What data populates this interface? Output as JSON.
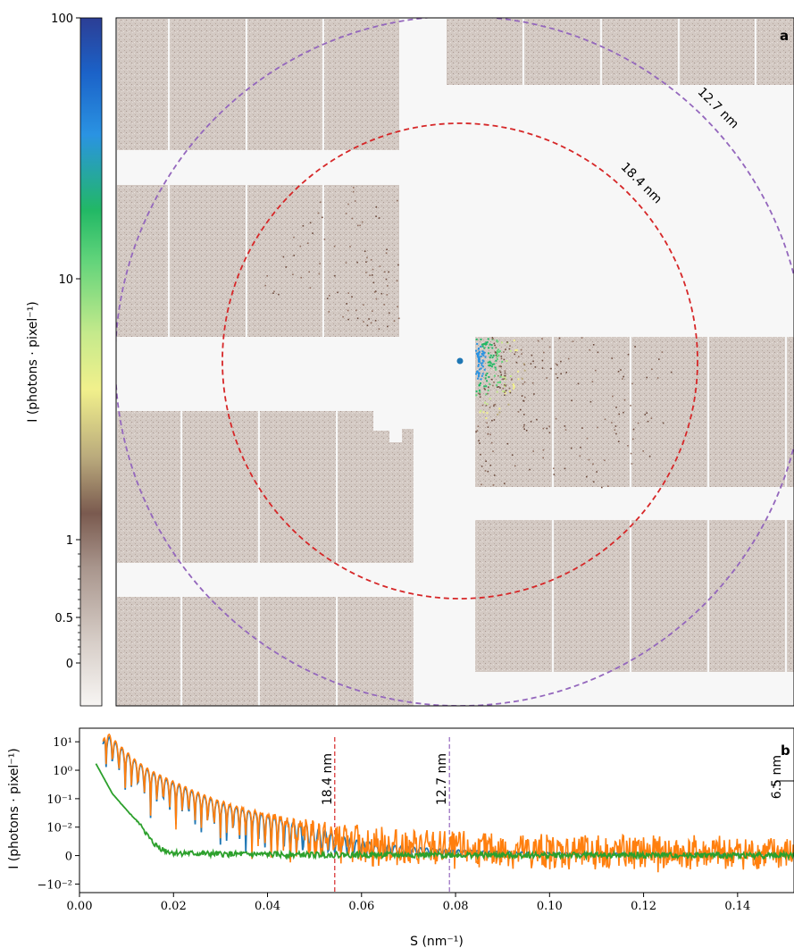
{
  "chart_data": [
    {
      "panel_label": "a",
      "type": "heatmap",
      "colorbar": {
        "label": "I (photons · pixel⁻¹)",
        "tick_labels": [
          "100",
          "10",
          "1",
          "0.5",
          "0"
        ],
        "scale": "symlog",
        "colors": [
          "#f7f5f3",
          "#d8cfc9",
          "#a9968d",
          "#7a5a4f",
          "#b9a97c",
          "#f1f08c",
          "#c6ea8c",
          "#5fd37a",
          "#22b865",
          "#2a93e2",
          "#1b62c8",
          "#2c3e95"
        ]
      },
      "beam_center_color": "#1f77b4",
      "rings": [
        {
          "label": "18.4 nm",
          "color": "#d62728"
        },
        {
          "label": "12.7 nm",
          "color": "#9467bd"
        }
      ],
      "detector_color": "#cdc3bc",
      "gap_color": "#f7f7f7"
    },
    {
      "panel_label": "b",
      "type": "line",
      "xlabel": "S (nm⁻¹)",
      "ylabel": "I (photons · pixel⁻¹)",
      "yscale": "symlog",
      "xlim": [
        0.0,
        0.152
      ],
      "ylim": [
        -0.02,
        30
      ],
      "x_ticks": [
        0.0,
        0.02,
        0.04,
        0.06,
        0.08,
        0.1,
        0.12,
        0.14
      ],
      "x_tick_labels": [
        "0.00",
        "0.02",
        "0.04",
        "0.06",
        "0.08",
        "0.10",
        "0.12",
        "0.14"
      ],
      "y_ticks": [
        -0.01,
        0,
        0.01,
        0.1,
        1,
        10
      ],
      "y_tick_labels": [
        "−10⁻²",
        "0",
        "10⁻²",
        "10⁻¹",
        "10⁰",
        "10¹"
      ],
      "vlines": [
        {
          "x": 0.0543,
          "label": "18.4 nm",
          "color": "#d62728"
        },
        {
          "x": 0.0787,
          "label": "12.7 nm",
          "color": "#9467bd"
        }
      ],
      "annotations": [
        {
          "x": 0.1538,
          "label": "6.5 nm"
        }
      ],
      "series": [
        {
          "color": "#1f77b4",
          "x": [
            0.005,
            0.0055,
            0.006,
            0.007,
            0.008,
            0.01,
            0.012,
            0.015,
            0.02,
            0.025,
            0.03,
            0.035,
            0.04,
            0.045,
            0.05,
            0.055,
            0.06,
            0.07,
            0.08,
            0.1,
            0.12,
            0.15
          ],
          "y": [
            8,
            20,
            15,
            12,
            8,
            4,
            2,
            0.9,
            0.35,
            0.15,
            0.07,
            0.04,
            0.025,
            0.015,
            0.01,
            0.007,
            0.005,
            0.003,
            0.002,
            0.001,
            0.0008,
            0.0005
          ]
        },
        {
          "color": "#ff7f0e",
          "x": [
            0.005,
            0.0055,
            0.006,
            0.007,
            0.008,
            0.01,
            0.012,
            0.015,
            0.02,
            0.025,
            0.03,
            0.035,
            0.04,
            0.045,
            0.05,
            0.055,
            0.06,
            0.07,
            0.08,
            0.1,
            0.12,
            0.15
          ],
          "y": [
            10,
            25,
            20,
            14,
            9,
            4.5,
            2.2,
            1.0,
            0.4,
            0.17,
            0.08,
            0.045,
            0.028,
            0.017,
            0.011,
            0.008,
            0.006,
            0.004,
            0.003,
            0.002,
            0.0015,
            0.001
          ]
        },
        {
          "color": "#2ca02c",
          "x": [
            0.0035,
            0.005,
            0.007,
            0.01,
            0.013,
            0.016,
            0.02,
            0.03,
            0.05,
            0.08,
            0.12,
            0.15
          ],
          "y": [
            1.7,
            0.6,
            0.15,
            0.04,
            0.012,
            0.004,
            0.001,
            0.0005,
            0.0003,
            0.0002,
            0.0001,
            0.0001
          ]
        }
      ]
    }
  ]
}
